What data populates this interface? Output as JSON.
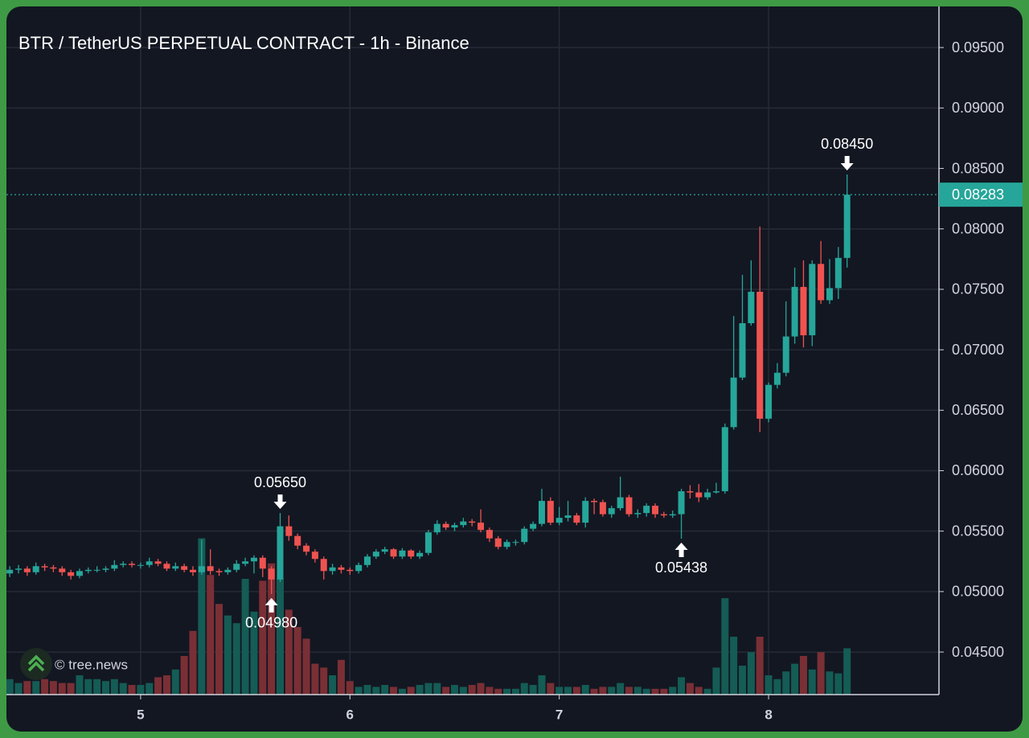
{
  "chart_data": {
    "type": "candlestick",
    "title": "BTR / TetherUS PERPETUAL CONTRACT - 1h - Binance",
    "watermark": "© tree.news",
    "x": [
      4.375,
      4.4167,
      4.4583,
      4.5,
      4.5417,
      4.5833,
      4.625,
      4.6667,
      4.7083,
      4.75,
      4.7917,
      4.8333,
      4.875,
      4.9167,
      4.9583,
      5,
      5.0417,
      5.0833,
      5.125,
      5.1667,
      5.2083,
      5.25,
      5.2917,
      5.3333,
      5.375,
      5.4167,
      5.4583,
      5.5,
      5.5417,
      5.5833,
      5.625,
      5.6667,
      5.7083,
      5.75,
      5.7917,
      5.8333,
      5.875,
      5.9167,
      5.9583,
      6,
      6.0417,
      6.0833,
      6.125,
      6.1667,
      6.2083,
      6.25,
      6.2917,
      6.3333,
      6.375,
      6.4167,
      6.4583,
      6.5,
      6.5417,
      6.5833,
      6.625,
      6.6667,
      6.7083,
      6.75,
      6.7917,
      6.8333,
      6.875,
      6.9167,
      6.9583,
      7,
      7.0417,
      7.0833,
      7.125,
      7.1667,
      7.2083,
      7.25,
      7.2917,
      7.3333,
      7.375,
      7.4167,
      7.4583,
      7.5,
      7.5417,
      7.5833,
      7.625,
      7.6667,
      7.7083,
      7.75,
      7.7917,
      7.8333,
      7.875,
      7.9167,
      7.9583,
      8,
      8.0417,
      8.0833,
      8.125,
      8.1667,
      8.2083,
      8.25,
      8.2917,
      8.3333,
      8.375
    ],
    "open": [
      0.0515,
      0.0518,
      0.0519,
      0.0516,
      0.0521,
      0.052,
      0.0519,
      0.0516,
      0.0513,
      0.0517,
      0.0518,
      0.0518,
      0.0519,
      0.0522,
      0.0523,
      0.0522,
      0.0522,
      0.0525,
      0.0523,
      0.0519,
      0.0521,
      0.0518,
      0.0516,
      0.0521,
      0.0517,
      0.0516,
      0.0518,
      0.0523,
      0.0525,
      0.0528,
      0.0519,
      0.051,
      0.0554,
      0.0546,
      0.0538,
      0.0533,
      0.0527,
      0.0517,
      0.052,
      0.0518,
      0.0517,
      0.0522,
      0.0529,
      0.0533,
      0.0535,
      0.0529,
      0.0534,
      0.0529,
      0.0532,
      0.0549,
      0.0556,
      0.0553,
      0.0555,
      0.0558,
      0.0557,
      0.0551,
      0.0544,
      0.0537,
      0.0541,
      0.0541,
      0.0552,
      0.0556,
      0.0575,
      0.0557,
      0.0561,
      0.0563,
      0.0557,
      0.0575,
      0.0574,
      0.0564,
      0.0569,
      0.0578,
      0.0564,
      0.0565,
      0.0571,
      0.0564,
      0.0563,
      0.0564,
      0.0583,
      0.0582,
      0.0578,
      0.0582,
      0.0583,
      0.0636,
      0.0677,
      0.0722,
      0.0748,
      0.0643,
      0.0671,
      0.0681,
      0.0711,
      0.0752,
      0.0712,
      0.0771,
      0.0741,
      0.0751,
      0.0776
    ],
    "high": [
      0.0521,
      0.0522,
      0.0521,
      0.0524,
      0.0523,
      0.0522,
      0.0521,
      0.0518,
      0.0519,
      0.052,
      0.0521,
      0.0521,
      0.0526,
      0.0525,
      0.0525,
      0.0524,
      0.0528,
      0.0527,
      0.0525,
      0.0524,
      0.0523,
      0.0521,
      0.0543,
      0.0535,
      0.0519,
      0.052,
      0.0526,
      0.0528,
      0.053,
      0.053,
      0.0521,
      0.0565,
      0.0563,
      0.0548,
      0.054,
      0.0535,
      0.0529,
      0.0523,
      0.0522,
      0.052,
      0.0524,
      0.0531,
      0.0535,
      0.0537,
      0.0536,
      0.0536,
      0.0535,
      0.0534,
      0.0551,
      0.0559,
      0.0558,
      0.0557,
      0.0561,
      0.056,
      0.0568,
      0.0553,
      0.0546,
      0.0543,
      0.0543,
      0.0554,
      0.0558,
      0.0585,
      0.0578,
      0.057,
      0.0575,
      0.0565,
      0.0578,
      0.0577,
      0.0576,
      0.0571,
      0.0595,
      0.058,
      0.0568,
      0.0573,
      0.0573,
      0.0566,
      0.0567,
      0.0585,
      0.0588,
      0.0589,
      0.0585,
      0.059,
      0.0639,
      0.0728,
      0.0762,
      0.0774,
      0.0802,
      0.0673,
      0.0689,
      0.074,
      0.0768,
      0.0774,
      0.0774,
      0.079,
      0.0775,
      0.0785,
      0.0845
    ],
    "low": [
      0.0512,
      0.0515,
      0.0513,
      0.0514,
      0.0517,
      0.0516,
      0.0513,
      0.051,
      0.0511,
      0.0515,
      0.0516,
      0.0516,
      0.0517,
      0.052,
      0.052,
      0.0519,
      0.052,
      0.0521,
      0.0517,
      0.0517,
      0.0516,
      0.0513,
      0.0514,
      0.0514,
      0.0513,
      0.0514,
      0.0516,
      0.0521,
      0.0515,
      0.0512,
      0.0498,
      0.0508,
      0.0542,
      0.0535,
      0.053,
      0.0524,
      0.051,
      0.0514,
      0.0515,
      0.0514,
      0.0515,
      0.052,
      0.0527,
      0.0531,
      0.0527,
      0.0527,
      0.0527,
      0.0527,
      0.053,
      0.0547,
      0.0551,
      0.055,
      0.0553,
      0.0554,
      0.0549,
      0.0541,
      0.0535,
      0.0535,
      0.0538,
      0.0539,
      0.055,
      0.0554,
      0.0555,
      0.0555,
      0.0558,
      0.0555,
      0.0553,
      0.0564,
      0.0562,
      0.0561,
      0.0567,
      0.0562,
      0.0561,
      0.0562,
      0.0561,
      0.0561,
      0.0561,
      0.05438,
      0.0577,
      0.0574,
      0.0576,
      0.0581,
      0.0581,
      0.0634,
      0.0675,
      0.072,
      0.0632,
      0.064,
      0.0668,
      0.0678,
      0.0705,
      0.0702,
      0.0703,
      0.0738,
      0.0738,
      0.0742,
      0.0768
    ],
    "close": [
      0.0518,
      0.0519,
      0.0516,
      0.0521,
      0.052,
      0.0519,
      0.0516,
      0.0513,
      0.0517,
      0.0518,
      0.0518,
      0.0519,
      0.0522,
      0.0523,
      0.0522,
      0.0522,
      0.0525,
      0.0523,
      0.0519,
      0.0521,
      0.0518,
      0.0516,
      0.0521,
      0.0517,
      0.0516,
      0.0518,
      0.0523,
      0.0525,
      0.0528,
      0.0519,
      0.051,
      0.0554,
      0.0546,
      0.0538,
      0.0533,
      0.0527,
      0.0517,
      0.052,
      0.0518,
      0.0517,
      0.0522,
      0.0529,
      0.0533,
      0.0535,
      0.0529,
      0.0534,
      0.0529,
      0.0532,
      0.0549,
      0.0556,
      0.0553,
      0.0555,
      0.0558,
      0.0557,
      0.0551,
      0.0544,
      0.0537,
      0.0541,
      0.0541,
      0.0552,
      0.0556,
      0.0575,
      0.0557,
      0.0561,
      0.0563,
      0.0557,
      0.0575,
      0.0574,
      0.0564,
      0.0569,
      0.0578,
      0.0564,
      0.0565,
      0.0571,
      0.0564,
      0.0563,
      0.0564,
      0.0583,
      0.0582,
      0.0578,
      0.0582,
      0.0583,
      0.0636,
      0.0677,
      0.0722,
      0.0748,
      0.0643,
      0.0671,
      0.0681,
      0.0711,
      0.0752,
      0.0712,
      0.0771,
      0.0741,
      0.0751,
      0.0776,
      0.08283
    ],
    "volume": [
      8,
      6,
      7,
      7,
      8,
      7,
      6,
      6,
      10,
      8,
      8,
      7,
      8,
      6,
      5,
      5,
      6,
      9,
      10,
      13,
      20,
      33,
      81,
      62,
      47,
      41,
      37,
      60,
      43,
      59,
      68,
      60,
      44,
      35,
      29,
      16,
      14,
      10,
      18,
      7,
      4,
      5,
      4,
      5,
      4,
      3,
      4,
      5,
      6,
      6,
      4,
      5,
      4,
      5,
      6,
      4,
      3,
      3,
      3,
      6,
      5,
      10,
      6,
      4,
      4,
      4,
      5,
      3,
      4,
      4,
      6,
      4,
      4,
      3,
      3,
      3,
      4,
      9,
      6,
      4,
      3,
      14,
      50,
      30,
      15,
      22,
      30,
      10,
      8,
      12,
      16,
      20,
      13,
      22,
      12,
      11,
      24
    ],
    "volume_lim": [
      0,
      100
    ],
    "colors": {
      "up": "#26a69a",
      "down": "#ef5350",
      "volume_up": "#145c55",
      "volume_down": "#7a2f35"
    },
    "xlim": [
      4.359,
      8.814
    ],
    "ylim": [
      0.04148,
      0.0984
    ],
    "xticks": [
      5,
      6,
      7,
      8
    ],
    "yticks": [
      {
        "value": 0.045,
        "label": "0.04500"
      },
      {
        "value": 0.05,
        "label": "0.05000"
      },
      {
        "value": 0.055,
        "label": "0.05500"
      },
      {
        "value": 0.06,
        "label": "0.06000"
      },
      {
        "value": 0.065,
        "label": "0.06500"
      },
      {
        "value": 0.07,
        "label": "0.07000"
      },
      {
        "value": 0.075,
        "label": "0.07500"
      },
      {
        "value": 0.08,
        "label": "0.08000"
      },
      {
        "value": 0.085,
        "label": "0.08500"
      },
      {
        "value": 0.09,
        "label": "0.09000"
      },
      {
        "value": 0.095,
        "label": "0.09500"
      }
    ],
    "grid": true,
    "last_price": {
      "value": 0.08283,
      "label": "0.08283"
    },
    "annotations": [
      {
        "label": "0.05650",
        "value": 0.0565,
        "x": 5.6667,
        "side": "above"
      },
      {
        "label": "0.04980",
        "value": 0.0498,
        "x": 5.625,
        "side": "below"
      },
      {
        "label": "0.05438",
        "value": 0.05438,
        "x": 7.5833,
        "side": "below"
      },
      {
        "label": "0.08450",
        "value": 0.0845,
        "x": 8.375,
        "side": "above"
      }
    ]
  }
}
